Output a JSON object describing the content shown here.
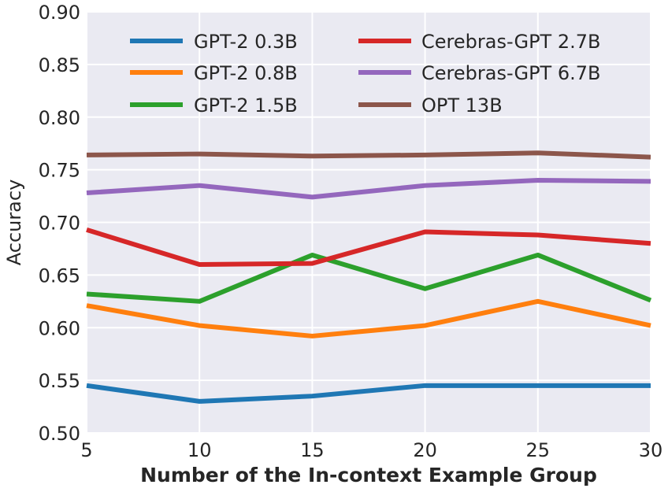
{
  "chart_data": {
    "type": "line",
    "title": "",
    "xlabel": "Number of the In-context Example Group",
    "ylabel": "Accuracy",
    "x": [
      5,
      10,
      15,
      20,
      25,
      30
    ],
    "xlim": [
      5,
      30
    ],
    "ylim": [
      0.5,
      0.9
    ],
    "xticks": [
      "5",
      "10",
      "15",
      "20",
      "25",
      "30"
    ],
    "yticks": [
      "0.50",
      "0.55",
      "0.60",
      "0.65",
      "0.70",
      "0.75",
      "0.80",
      "0.85",
      "0.90"
    ],
    "grid": true,
    "legend_position": "top",
    "series": [
      {
        "name": "GPT-2 0.3B",
        "color": "#1f77b4",
        "values": [
          0.545,
          0.53,
          0.535,
          0.545,
          0.545,
          0.545
        ]
      },
      {
        "name": "GPT-2 0.8B",
        "color": "#ff7f0e",
        "values": [
          0.621,
          0.602,
          0.592,
          0.602,
          0.625,
          0.602
        ]
      },
      {
        "name": "GPT-2 1.5B",
        "color": "#2ca02c",
        "values": [
          0.632,
          0.625,
          0.669,
          0.637,
          0.669,
          0.626
        ]
      },
      {
        "name": "Cerebras-GPT 2.7B",
        "color": "#d62728",
        "values": [
          0.693,
          0.66,
          0.661,
          0.691,
          0.688,
          0.68
        ]
      },
      {
        "name": "Cerebras-GPT 6.7B",
        "color": "#9467bd",
        "values": [
          0.728,
          0.735,
          0.724,
          0.735,
          0.74,
          0.739
        ]
      },
      {
        "name": "OPT 13B",
        "color": "#8c564b",
        "values": [
          0.764,
          0.765,
          0.763,
          0.764,
          0.766,
          0.762
        ]
      }
    ]
  }
}
